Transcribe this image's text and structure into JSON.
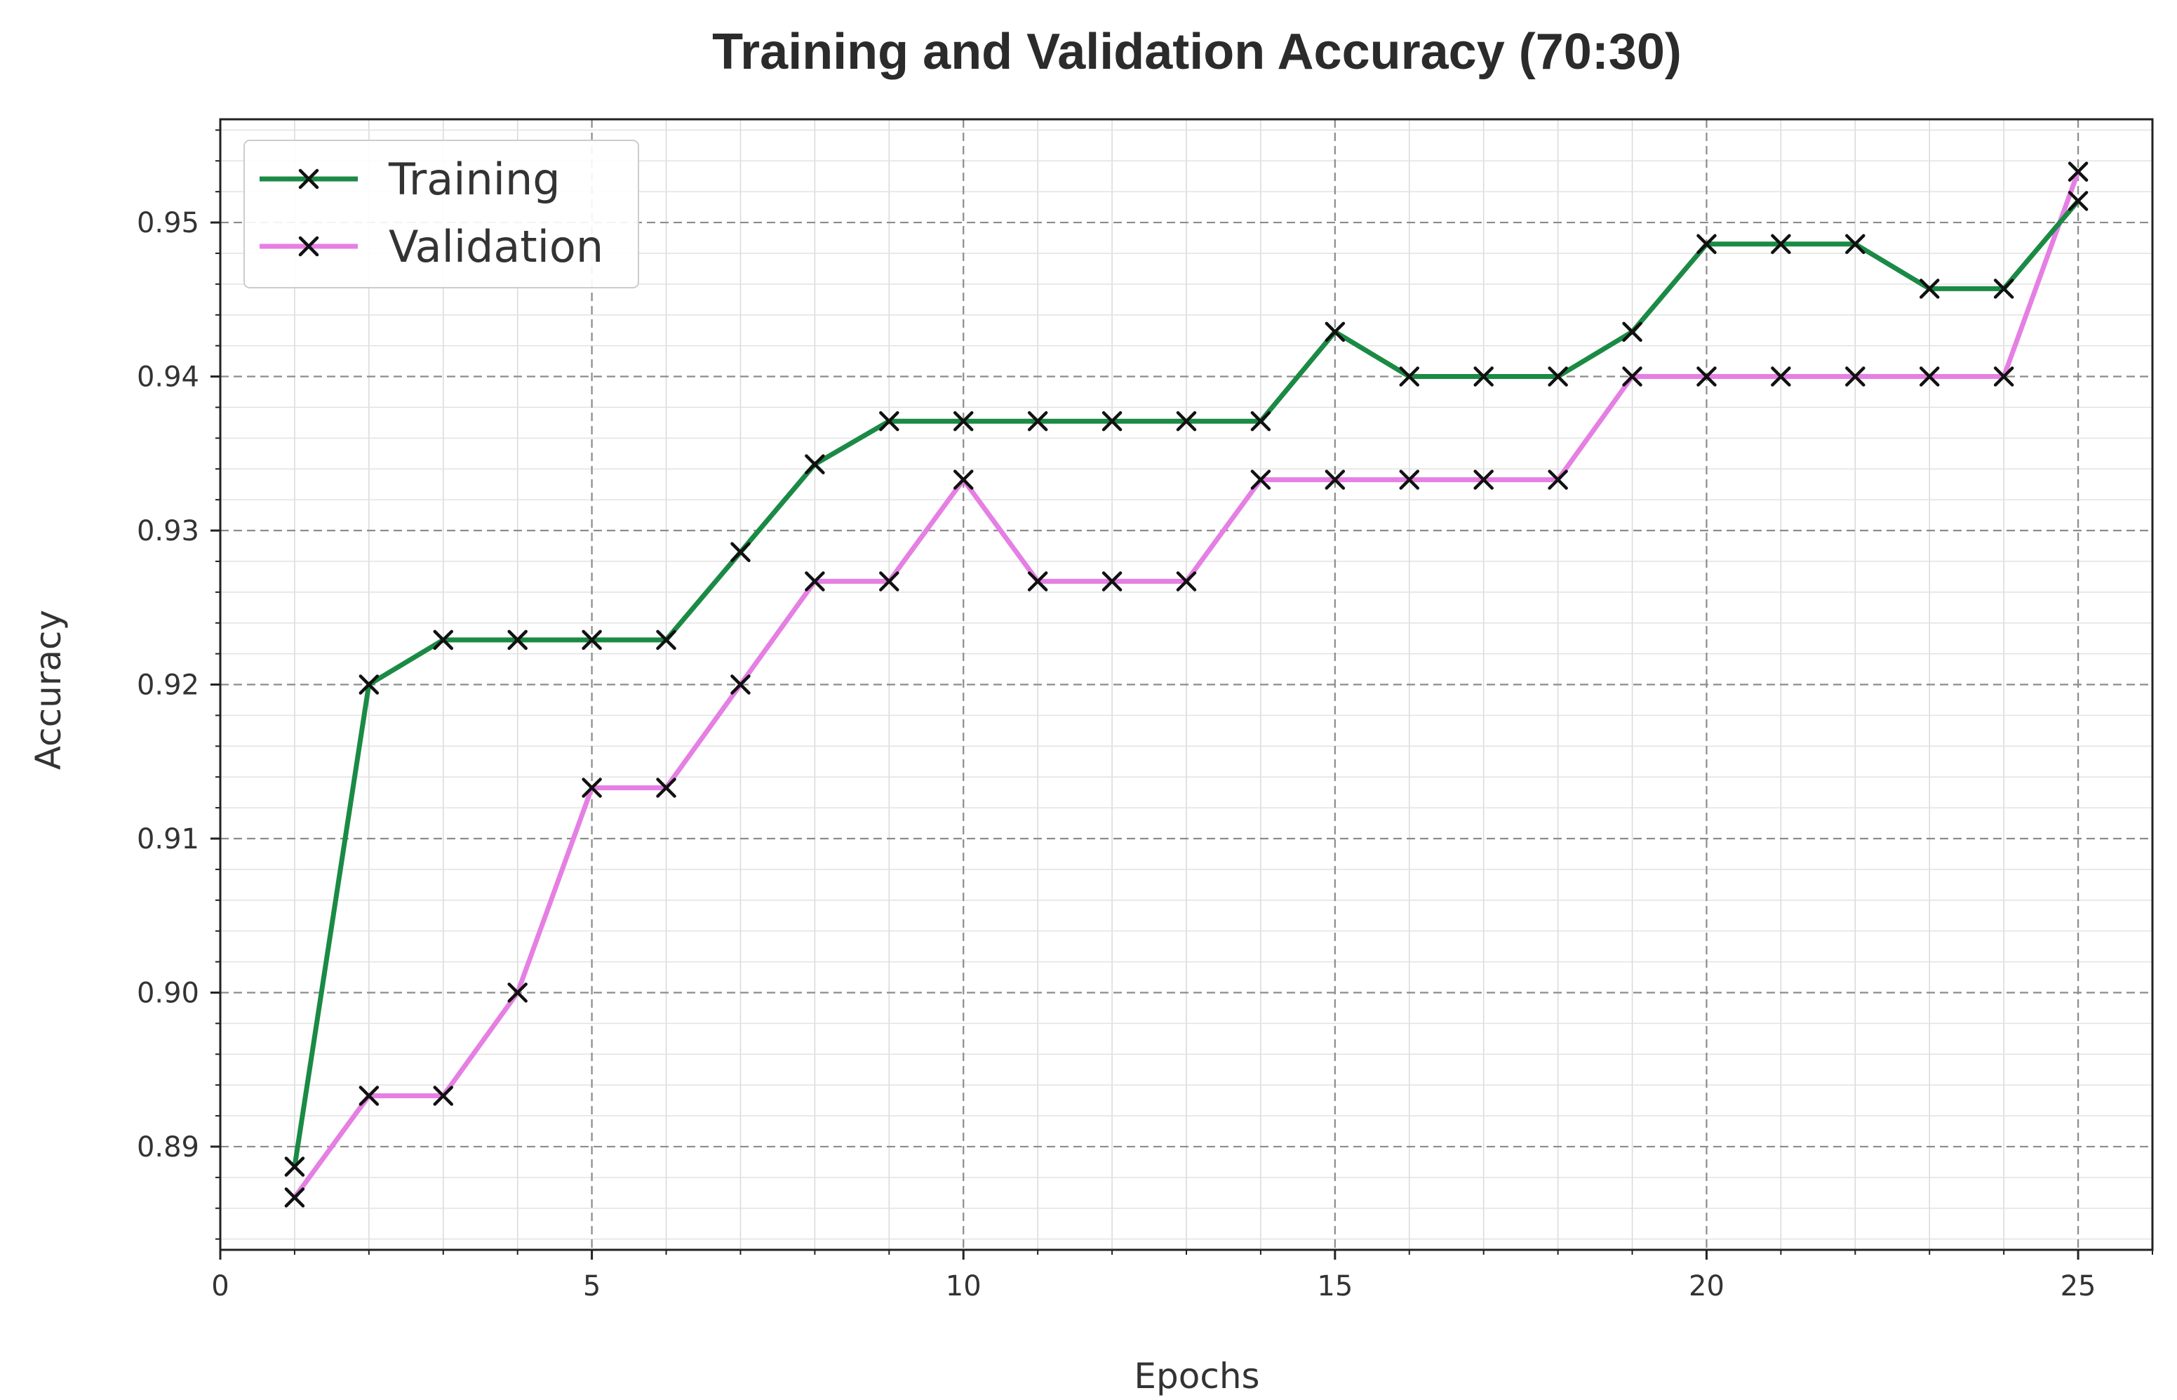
{
  "chart_data": {
    "type": "line",
    "title": "Training and Validation Accuracy (70:30)",
    "xlabel": "Epochs",
    "ylabel": "Accuracy",
    "xlim": [
      0,
      26
    ],
    "ylim": [
      0.8833,
      0.9567
    ],
    "x_major_ticks": [
      0,
      5,
      10,
      15,
      20,
      25
    ],
    "x_tick_labels": [
      "0",
      "5",
      "10",
      "15",
      "20",
      "25"
    ],
    "y_major_ticks": [
      0.89,
      0.9,
      0.91,
      0.92,
      0.93,
      0.94,
      0.95
    ],
    "y_tick_labels": [
      "0.89",
      "0.90",
      "0.91",
      "0.92",
      "0.93",
      "0.94",
      "0.95"
    ],
    "grid": true,
    "legend_position": "top-left",
    "marker": "x",
    "x": [
      1,
      2,
      3,
      4,
      5,
      6,
      7,
      8,
      9,
      10,
      11,
      12,
      13,
      14,
      15,
      16,
      17,
      18,
      19,
      20,
      21,
      22,
      23,
      24,
      25
    ],
    "series": [
      {
        "name": "Training",
        "color": "#1a8a45",
        "values": [
          0.8887,
          0.92,
          0.9229,
          0.9229,
          0.9229,
          0.9229,
          0.9286,
          0.9343,
          0.9371,
          0.9371,
          0.9371,
          0.9371,
          0.9371,
          0.9371,
          0.9429,
          0.94,
          0.94,
          0.94,
          0.9429,
          0.9486,
          0.9486,
          0.9486,
          0.9457,
          0.9457,
          0.9514
        ]
      },
      {
        "name": "Validation",
        "color": "#e57fe3",
        "values": [
          0.8867,
          0.8933,
          0.8933,
          0.9,
          0.9133,
          0.9133,
          0.92,
          0.9267,
          0.9267,
          0.9333,
          0.9267,
          0.9267,
          0.9267,
          0.9333,
          0.9333,
          0.9333,
          0.9333,
          0.9333,
          0.94,
          0.94,
          0.94,
          0.94,
          0.94,
          0.94,
          0.9533
        ]
      }
    ]
  }
}
